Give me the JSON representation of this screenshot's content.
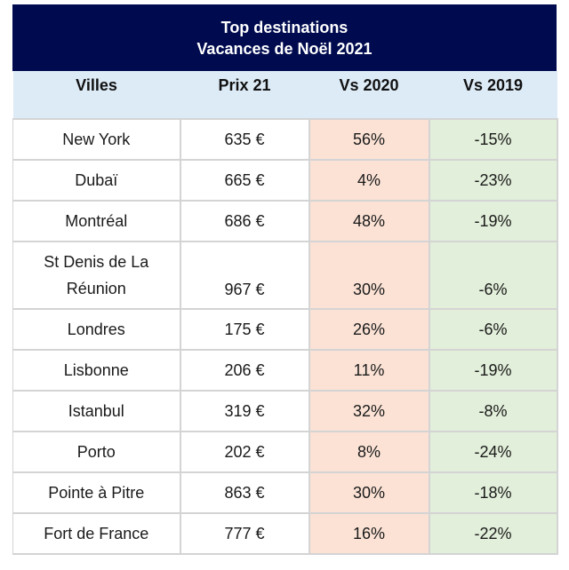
{
  "title": {
    "line1": "Top destinations",
    "line2": "Vacances de Noël 2021"
  },
  "colors": {
    "title_bg": "#000b4f",
    "header_bg": "#ddebf7",
    "vs2020_bg": "#fbe2d5",
    "vs2019_bg": "#e2efda"
  },
  "chart_data": {
    "type": "table",
    "title": "Top destinations Vacances de Noël 2021",
    "columns": [
      "Villes",
      "Prix 21",
      "Vs 2020",
      "Vs 2019"
    ],
    "rows": [
      [
        "New York",
        "635 €",
        "56%",
        "-15%"
      ],
      [
        "Dubaï",
        "665 €",
        "4%",
        "-23%"
      ],
      [
        "Montréal",
        "686 €",
        "48%",
        "-19%"
      ],
      [
        "St Denis de La Réunion",
        "967 €",
        "30%",
        "-6%"
      ],
      [
        "Londres",
        "175 €",
        "26%",
        "-6%"
      ],
      [
        "Lisbonne",
        "206 €",
        "11%",
        "-19%"
      ],
      [
        "Istanbul",
        "319 €",
        "32%",
        "-8%"
      ],
      [
        "Porto",
        "202 €",
        "8%",
        "-24%"
      ],
      [
        "Pointe à Pitre",
        "863 €",
        "30%",
        "-18%"
      ],
      [
        "Fort de France",
        "777 €",
        "16%",
        "-22%"
      ]
    ]
  }
}
